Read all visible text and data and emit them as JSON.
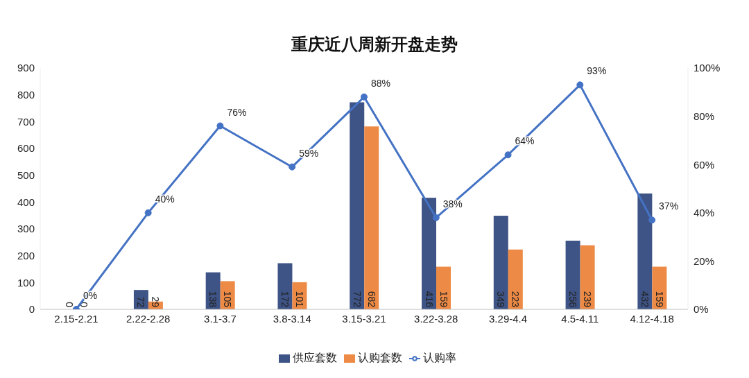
{
  "chart_data": {
    "type": "bar",
    "title": "重庆近八周新开盘走势",
    "categories": [
      "2.15-2.21",
      "2.22-2.28",
      "3.1-3.7",
      "3.8-3.14",
      "3.15-3.21",
      "3.22-3.28",
      "3.29-4.4",
      "4.5-4.11",
      "4.12-4.18"
    ],
    "series": [
      {
        "name": "供应套数",
        "color": "#3e5486",
        "values": [
          0,
          72,
          138,
          172,
          772,
          416,
          349,
          256,
          432
        ],
        "value_labels": [
          "0",
          "72",
          "138",
          "172",
          "772",
          "416",
          "349",
          "256",
          "432"
        ]
      },
      {
        "name": "认购套数",
        "color": "#ed8a45",
        "values": [
          0,
          29,
          105,
          101,
          682,
          159,
          223,
          239,
          159
        ],
        "value_labels": [
          "0",
          "29",
          "105",
          "101",
          "682",
          "159",
          "223",
          "239",
          "159"
        ]
      },
      {
        "name": "认购率",
        "type": "line",
        "axis": "y2",
        "color": "#4472c4",
        "values": [
          0,
          40,
          76,
          59,
          88,
          38,
          64,
          93,
          37
        ],
        "value_labels": [
          "0%",
          "40%",
          "76%",
          "59%",
          "88%",
          "38%",
          "64%",
          "93%",
          "37%"
        ]
      }
    ],
    "ylim": [
      0,
      900
    ],
    "yticks": [
      0,
      100,
      200,
      300,
      400,
      500,
      600,
      700,
      800,
      900
    ],
    "y2lim": [
      0,
      100
    ],
    "y2ticks": [
      {
        "value": 0,
        "label": "0%"
      },
      {
        "value": 20,
        "label": "20%"
      },
      {
        "value": 40,
        "label": "40%"
      },
      {
        "value": 60,
        "label": "60%"
      },
      {
        "value": 80,
        "label": "80%"
      },
      {
        "value": 100,
        "label": "100%"
      }
    ],
    "grid": false,
    "legend": "bottom",
    "marker": "circle",
    "line_style": "solid"
  }
}
